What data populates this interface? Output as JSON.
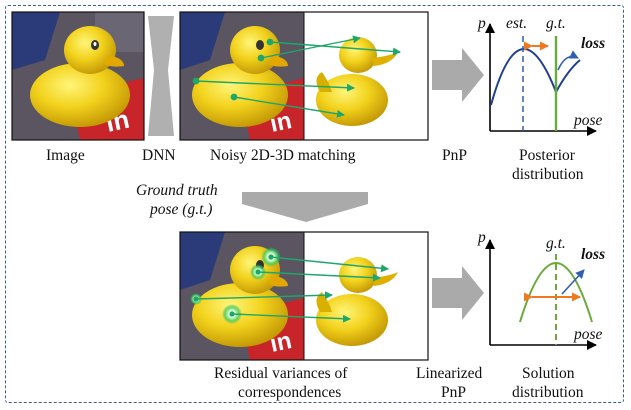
{
  "top_row": {
    "image_caption": "Image",
    "dnn_caption": "DNN",
    "matching_caption": "Noisy 2D-3D matching",
    "pnp_caption": "PnP",
    "posterior_caption_line1": "Posterior",
    "posterior_caption_line2": "distribution",
    "plot": {
      "y_axis_label": "p",
      "x_axis_label": "pose",
      "est_label": "est.",
      "gt_label": "g.t.",
      "loss_label": "loss"
    }
  },
  "middle": {
    "ground_truth_line1": "Ground truth",
    "ground_truth_line2": "pose (g.t.)"
  },
  "bottom_row": {
    "residual_caption_line1": "Residual variances of",
    "residual_caption_line2": "correspondences",
    "linearized_pnp_line1": "Linearized",
    "linearized_pnp_line2": "PnP",
    "solution_caption_line1": "Solution",
    "solution_caption_line2": "distribution",
    "plot": {
      "y_axis_label": "p",
      "x_axis_label": "pose",
      "gt_label": "g.t.",
      "loss_label": "loss"
    }
  },
  "colors": {
    "frame_border": "#3a5f95",
    "correspondence_line": "#1fa66a",
    "posterior_curve": "#1f3f8f",
    "solution_curve": "#6aaa3a",
    "interval_arrow": "#f07820",
    "loss_arrow": "#2f5fb0",
    "block_arrow": "#aaaaaa"
  }
}
